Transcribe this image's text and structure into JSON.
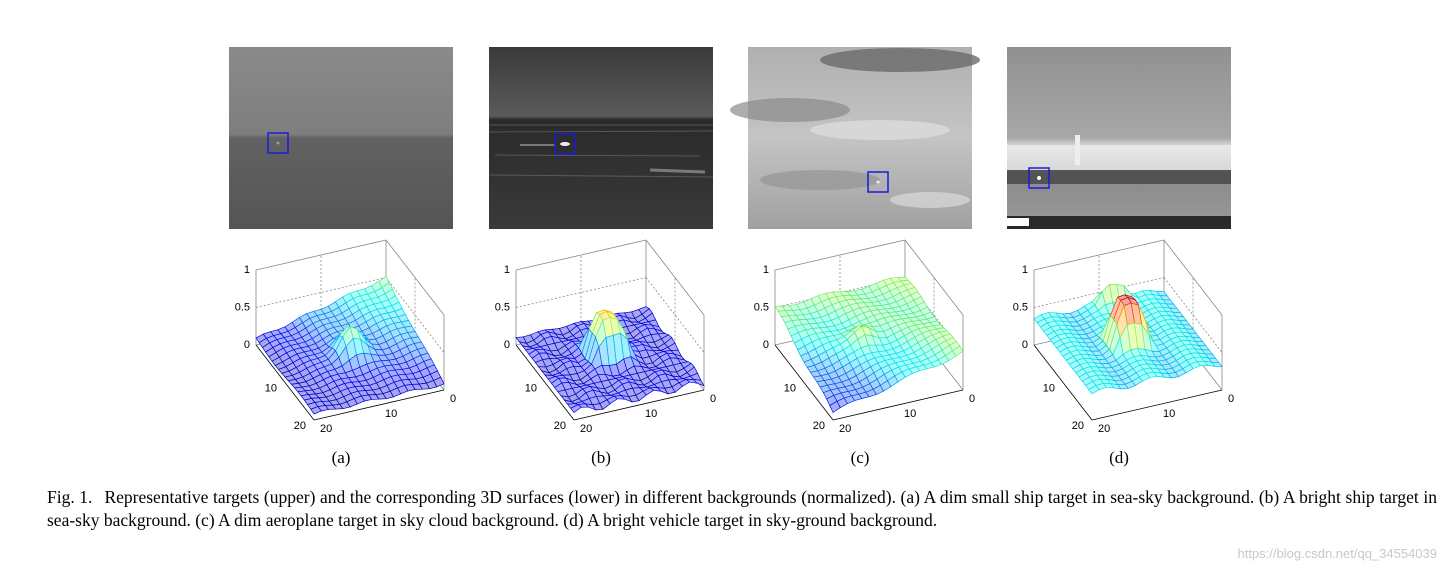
{
  "figure": {
    "panels": [
      {
        "label": "(a)",
        "z_ticks": [
          "1",
          "0.5",
          "0"
        ],
        "left_ticks": [
          "10",
          "20"
        ],
        "right_ticks": [
          "20",
          "10",
          "0"
        ]
      },
      {
        "label": "(b)",
        "z_ticks": [
          "1",
          "0.5",
          "0"
        ],
        "left_ticks": [
          "10",
          "20"
        ],
        "right_ticks": [
          "20",
          "10",
          "0"
        ]
      },
      {
        "label": "(c)",
        "z_ticks": [
          "1",
          "0.5",
          "0"
        ],
        "left_ticks": [
          "10",
          "20"
        ],
        "right_ticks": [
          "20",
          "10",
          "0"
        ]
      },
      {
        "label": "(d)",
        "z_ticks": [
          "1",
          "0.5",
          "0"
        ],
        "left_ticks": [
          "10",
          "20"
        ],
        "right_ticks": [
          "20",
          "10",
          "0"
        ]
      }
    ],
    "caption": {
      "prefix": "Fig. 1.",
      "text": "Representative targets (upper) and the corresponding 3D surfaces (lower) in different backgrounds (normalized). (a) A dim small ship target in sea-sky background. (b) A bright ship target in sea-sky background. (c) A dim aeroplane target in sky cloud background. (d) A bright vehicle target in sky-ground background."
    }
  },
  "watermark": "https://blog.csdn.net/qq_34554039"
}
